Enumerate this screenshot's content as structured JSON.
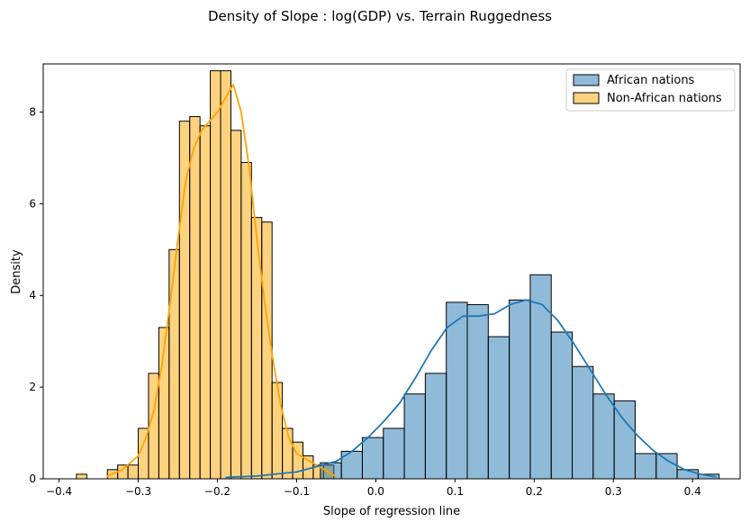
{
  "chart_data": {
    "type": "histogram",
    "title": "Density of Slope : log(GDP) vs. Terrain Ruggedness",
    "xlabel": "Slope of regression line",
    "ylabel": "Density",
    "xlim": [
      -0.42,
      0.46
    ],
    "ylim": [
      0,
      9.05
    ],
    "x_ticks": [
      -0.4,
      -0.3,
      -0.2,
      -0.1,
      0.0,
      0.1,
      0.2,
      0.3,
      0.4
    ],
    "x_tick_labels": [
      "−0.4",
      "−0.3",
      "−0.2",
      "−0.1",
      "0.0",
      "0.1",
      "0.2",
      "0.3",
      "0.4"
    ],
    "y_ticks": [
      0,
      2,
      4,
      6,
      8
    ],
    "y_tick_labels": [
      "0",
      "2",
      "4",
      "6",
      "8"
    ],
    "grid": false,
    "legend_position": "top-right",
    "series": [
      {
        "name": "Non-African nations",
        "fill": "#ffa500",
        "line": "#ffa500",
        "bin_edges": [
          -0.378,
          -0.365,
          -0.352,
          -0.339,
          -0.326,
          -0.313,
          -0.3,
          -0.287,
          -0.274,
          -0.261,
          -0.248,
          -0.235,
          -0.222,
          -0.209,
          -0.196,
          -0.183,
          -0.17,
          -0.157,
          -0.144,
          -0.131,
          -0.118,
          -0.105,
          -0.092,
          -0.079,
          -0.066,
          -0.053
        ],
        "densities": [
          0.1,
          0.0,
          0.0,
          0.2,
          0.3,
          0.3,
          1.1,
          2.3,
          3.3,
          5.0,
          7.8,
          7.9,
          7.7,
          8.9,
          8.9,
          7.6,
          6.9,
          5.7,
          5.6,
          2.1,
          1.1,
          0.8,
          0.5,
          0.3,
          0.3
        ],
        "kde_x": [
          -0.34,
          -0.32,
          -0.3,
          -0.29,
          -0.28,
          -0.27,
          -0.26,
          -0.25,
          -0.24,
          -0.23,
          -0.22,
          -0.21,
          -0.2,
          -0.19,
          -0.18,
          -0.17,
          -0.16,
          -0.15,
          -0.14,
          -0.13,
          -0.12,
          -0.11,
          -0.1,
          -0.09,
          -0.08,
          -0.07,
          -0.06,
          -0.05
        ],
        "kde_y": [
          0.05,
          0.2,
          0.5,
          0.9,
          1.5,
          2.5,
          3.8,
          5.2,
          6.5,
          7.2,
          7.6,
          7.8,
          8.0,
          8.3,
          8.6,
          8.0,
          6.8,
          5.2,
          3.8,
          2.6,
          1.6,
          0.9,
          0.55,
          0.45,
          0.35,
          0.25,
          0.15,
          0.05
        ]
      },
      {
        "name": "African nations",
        "fill": "#1f77b4",
        "line": "#1f77b4",
        "bin_edges": [
          -0.07,
          -0.0435,
          -0.017,
          0.0095,
          0.036,
          0.0625,
          0.089,
          0.1155,
          0.142,
          0.1685,
          0.195,
          0.2215,
          0.248,
          0.2745,
          0.301,
          0.3275,
          0.354,
          0.3805,
          0.407,
          0.4335
        ],
        "densities": [
          0.35,
          0.6,
          0.9,
          1.1,
          1.85,
          2.3,
          3.85,
          3.8,
          3.1,
          3.9,
          4.45,
          3.2,
          2.45,
          1.85,
          1.7,
          0.55,
          0.55,
          0.2,
          0.1
        ],
        "kde_x": [
          -0.19,
          -0.15,
          -0.1,
          -0.05,
          -0.03,
          -0.01,
          0.01,
          0.03,
          0.05,
          0.07,
          0.09,
          0.11,
          0.13,
          0.15,
          0.17,
          0.19,
          0.21,
          0.23,
          0.25,
          0.27,
          0.29,
          0.31,
          0.33,
          0.35,
          0.37,
          0.39,
          0.41,
          0.43
        ],
        "kde_y": [
          0.03,
          0.06,
          0.15,
          0.38,
          0.6,
          0.9,
          1.25,
          1.65,
          2.2,
          2.8,
          3.3,
          3.55,
          3.55,
          3.6,
          3.8,
          3.9,
          3.8,
          3.45,
          2.95,
          2.4,
          1.85,
          1.35,
          0.95,
          0.62,
          0.38,
          0.2,
          0.1,
          0.04
        ]
      }
    ],
    "legend_entries": [
      "African nations",
      "Non-African nations"
    ]
  }
}
